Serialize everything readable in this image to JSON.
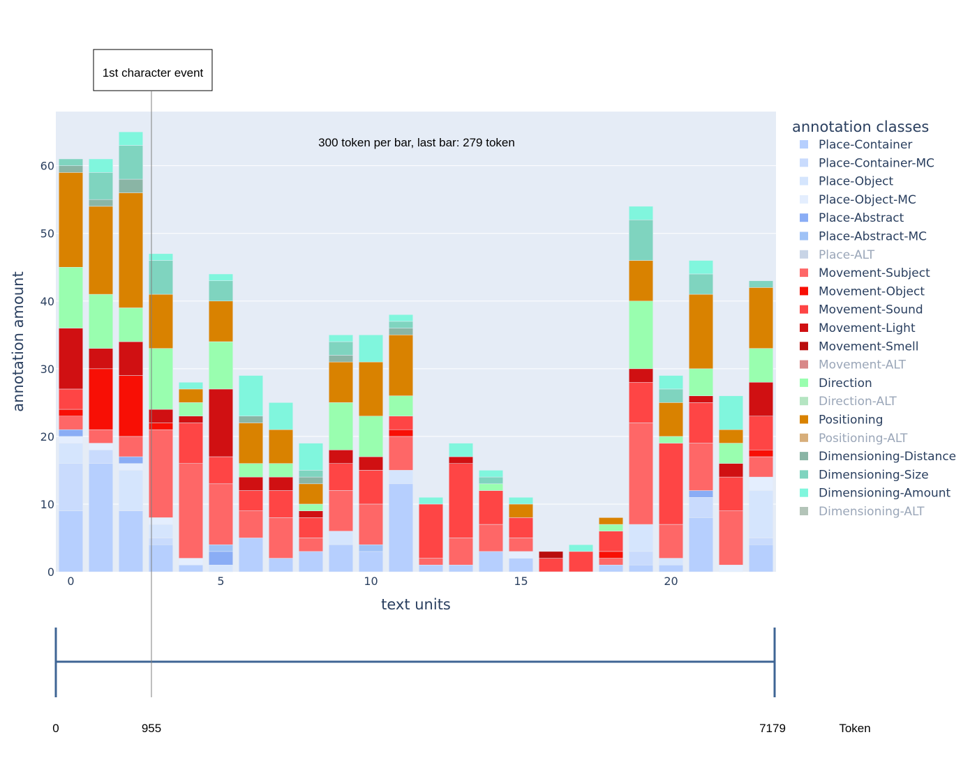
{
  "chart_data": {
    "type": "bar",
    "barmode": "stack",
    "xlabel": "text units",
    "ylabel": "annotation amount",
    "x": [
      0,
      1,
      2,
      3,
      4,
      5,
      6,
      7,
      8,
      9,
      10,
      11,
      12,
      13,
      14,
      15,
      16,
      17,
      18,
      19,
      20,
      21,
      22,
      23
    ],
    "x_ticks": [
      0,
      5,
      10,
      15,
      20
    ],
    "y_ticks": [
      0,
      10,
      20,
      30,
      40,
      50,
      60
    ],
    "ylim": [
      0,
      68
    ],
    "grid": true,
    "plot_background": "#e5ecf6",
    "legend": {
      "title": "annotation classes",
      "placement": "right"
    },
    "annotations": {
      "bar_info": "300 token per bar, last bar: 279 token",
      "event_label": "1st character event"
    },
    "series": [
      {
        "name": "Place-Container",
        "color": "#b6cffe",
        "dimmed": false,
        "values": [
          9,
          16,
          9,
          4,
          1,
          0,
          5,
          2,
          3,
          4,
          3,
          13,
          1,
          1,
          3,
          2,
          0,
          0,
          1,
          1,
          1,
          8,
          0,
          4
        ]
      },
      {
        "name": "Place-Container-MC",
        "color": "#c9dbfd",
        "dimmed": false,
        "values": [
          7,
          2,
          0,
          1,
          0,
          0,
          0,
          0,
          0,
          0,
          0,
          0,
          0,
          0,
          0,
          0,
          0,
          0,
          0,
          2,
          0,
          3,
          0,
          1
        ]
      },
      {
        "name": "Place-Object",
        "color": "#d5e5fd",
        "dimmed": false,
        "values": [
          3,
          0,
          6,
          2,
          0,
          1,
          0,
          0,
          0,
          2,
          0,
          2,
          0,
          0,
          0,
          0,
          0,
          0,
          0,
          4,
          1,
          0,
          0,
          7
        ]
      },
      {
        "name": "Place-Object-MC",
        "color": "#e4eefe",
        "dimmed": false,
        "values": [
          1,
          1,
          1,
          1,
          1,
          0,
          0,
          0,
          0,
          0,
          0,
          0,
          0,
          0,
          0,
          1,
          0,
          0,
          0,
          0,
          0,
          0,
          1,
          2
        ]
      },
      {
        "name": "Place-Abstract",
        "color": "#8aadf5",
        "dimmed": false,
        "values": [
          1,
          0,
          1,
          0,
          0,
          2,
          0,
          0,
          0,
          0,
          0,
          0,
          0,
          0,
          0,
          0,
          0,
          0,
          0,
          0,
          0,
          1,
          0,
          0
        ]
      },
      {
        "name": "Place-Abstract-MC",
        "color": "#9fc2f6",
        "dimmed": false,
        "values": [
          0,
          0,
          0,
          0,
          0,
          1,
          0,
          0,
          0,
          0,
          1,
          0,
          0,
          0,
          0,
          0,
          0,
          0,
          0,
          0,
          0,
          0,
          0,
          0
        ]
      },
      {
        "name": "Place-ALT",
        "color": "#c8d4e6",
        "dimmed": true,
        "values": [
          0,
          0,
          0,
          0,
          0,
          0,
          0,
          0,
          0,
          0,
          0,
          0,
          0,
          0,
          0,
          0,
          0,
          0,
          0,
          0,
          0,
          0,
          0,
          0
        ]
      },
      {
        "name": "Movement-Subject",
        "color": "#fe6767",
        "dimmed": false,
        "values": [
          2,
          2,
          3,
          13,
          14,
          9,
          4,
          6,
          2,
          6,
          6,
          5,
          1,
          4,
          4,
          2,
          0,
          0,
          1,
          15,
          5,
          7,
          8,
          3
        ]
      },
      {
        "name": "Movement-Object",
        "color": "#f80f05",
        "dimmed": false,
        "values": [
          1,
          9,
          9,
          1,
          0,
          0,
          0,
          0,
          0,
          0,
          0,
          1,
          0,
          0,
          0,
          0,
          0,
          0,
          1,
          0,
          0,
          0,
          0,
          1
        ]
      },
      {
        "name": "Movement-Sound",
        "color": "#fe4545",
        "dimmed": false,
        "values": [
          3,
          0,
          0,
          0,
          6,
          4,
          3,
          4,
          3,
          4,
          5,
          2,
          8,
          11,
          5,
          3,
          2,
          3,
          3,
          6,
          12,
          6,
          5,
          5
        ]
      },
      {
        "name": "Movement-Light",
        "color": "#d01012",
        "dimmed": false,
        "values": [
          9,
          3,
          5,
          2,
          1,
          10,
          2,
          2,
          1,
          2,
          2,
          0,
          0,
          1,
          0,
          0,
          0,
          0,
          0,
          2,
          0,
          1,
          2,
          5
        ]
      },
      {
        "name": "Movement-Smell",
        "color": "#b90d0d",
        "dimmed": false,
        "values": [
          0,
          0,
          0,
          0,
          0,
          0,
          0,
          0,
          0,
          0,
          0,
          0,
          0,
          0,
          0,
          0,
          1,
          0,
          0,
          0,
          0,
          0,
          0,
          0
        ]
      },
      {
        "name": "Movement-ALT",
        "color": "#d88888",
        "dimmed": true,
        "values": [
          0,
          0,
          0,
          0,
          0,
          0,
          0,
          0,
          0,
          0,
          0,
          0,
          0,
          0,
          0,
          0,
          0,
          0,
          0,
          0,
          0,
          0,
          0,
          0
        ]
      },
      {
        "name": "Direction",
        "color": "#99feaf",
        "dimmed": false,
        "values": [
          9,
          8,
          5,
          9,
          2,
          7,
          2,
          2,
          1,
          7,
          6,
          3,
          0,
          0,
          1,
          0,
          0,
          0,
          1,
          10,
          1,
          4,
          3,
          5
        ]
      },
      {
        "name": "Direction-ALT",
        "color": "#b5e5c2",
        "dimmed": true,
        "values": [
          0,
          0,
          0,
          0,
          0,
          0,
          0,
          0,
          0,
          0,
          0,
          0,
          0,
          0,
          0,
          0,
          0,
          0,
          0,
          0,
          0,
          0,
          0,
          0
        ]
      },
      {
        "name": "Positioning",
        "color": "#d98200",
        "dimmed": false,
        "values": [
          14,
          13,
          17,
          8,
          2,
          6,
          6,
          5,
          3,
          6,
          8,
          9,
          0,
          0,
          0,
          2,
          0,
          0,
          1,
          6,
          5,
          11,
          2,
          9
        ]
      },
      {
        "name": "Positioning-ALT",
        "color": "#d7ae7a",
        "dimmed": true,
        "values": [
          0,
          0,
          0,
          0,
          0,
          0,
          0,
          0,
          0,
          0,
          0,
          0,
          0,
          0,
          0,
          0,
          0,
          0,
          0,
          0,
          0,
          0,
          0,
          0
        ]
      },
      {
        "name": "Dimensioning-Distance",
        "color": "#8ab5a5",
        "dimmed": false,
        "values": [
          1,
          1,
          2,
          0,
          0,
          0,
          1,
          0,
          1,
          1,
          0,
          1,
          0,
          0,
          0,
          0,
          0,
          0,
          0,
          0,
          0,
          0,
          0,
          0
        ]
      },
      {
        "name": "Dimensioning-Size",
        "color": "#7fd4bf",
        "dimmed": false,
        "values": [
          1,
          4,
          5,
          5,
          0,
          3,
          0,
          0,
          1,
          2,
          0,
          1,
          0,
          0,
          1,
          0,
          0,
          0,
          0,
          6,
          2,
          3,
          0,
          1
        ]
      },
      {
        "name": "Dimensioning-Amount",
        "color": "#80f6dd",
        "dimmed": false,
        "values": [
          0,
          2,
          2,
          1,
          1,
          1,
          6,
          4,
          4,
          1,
          4,
          1,
          1,
          2,
          1,
          1,
          0,
          1,
          0,
          2,
          2,
          2,
          5,
          0
        ]
      },
      {
        "name": "Dimensioning-ALT",
        "color": "#b3c4b8",
        "dimmed": true,
        "values": [
          0,
          0,
          0,
          0,
          0,
          0,
          0,
          0,
          0,
          0,
          0,
          0,
          0,
          0,
          0,
          0,
          0,
          0,
          0,
          0,
          0,
          0,
          0,
          0
        ]
      }
    ],
    "timeline": {
      "start": 0,
      "end": 7179,
      "event_position": 955,
      "unit_label": "Token",
      "tick_labels": [
        "0",
        "955",
        "7179"
      ]
    }
  }
}
